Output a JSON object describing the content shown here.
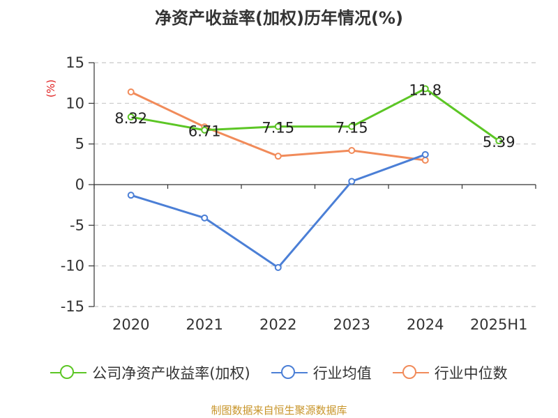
{
  "title": "净资产收益率(加权)历年情况(%)",
  "source": "制图数据来自恒生聚源数据库",
  "chart_data": {
    "type": "line",
    "title": "净资产收益率(加权)历年情况(%)",
    "ylabel": "(%)",
    "xlabel": "",
    "categories": [
      "2020",
      "2021",
      "2022",
      "2023",
      "2024",
      "2025H1"
    ],
    "ylim": [
      -15,
      15
    ],
    "yticks": [
      15,
      10,
      5,
      0,
      -5,
      -10,
      -15
    ],
    "grid": true,
    "legend_position": "bottom",
    "series": [
      {
        "name": "公司净资产收益率(加权)",
        "color": "#5cc625",
        "values": [
          8.32,
          6.71,
          7.15,
          7.15,
          11.8,
          5.39
        ],
        "labels": [
          "8.32",
          "6.71",
          "7.15",
          "7.15",
          "11.8",
          "5.39"
        ]
      },
      {
        "name": "行业均值",
        "color": "#4b7fd6",
        "values": [
          -1.3,
          -4.1,
          -10.2,
          0.4,
          3.7,
          null
        ]
      },
      {
        "name": "行业中位数",
        "color": "#f18b5a",
        "values": [
          11.4,
          7.1,
          3.5,
          4.2,
          3.0,
          null
        ]
      }
    ]
  }
}
